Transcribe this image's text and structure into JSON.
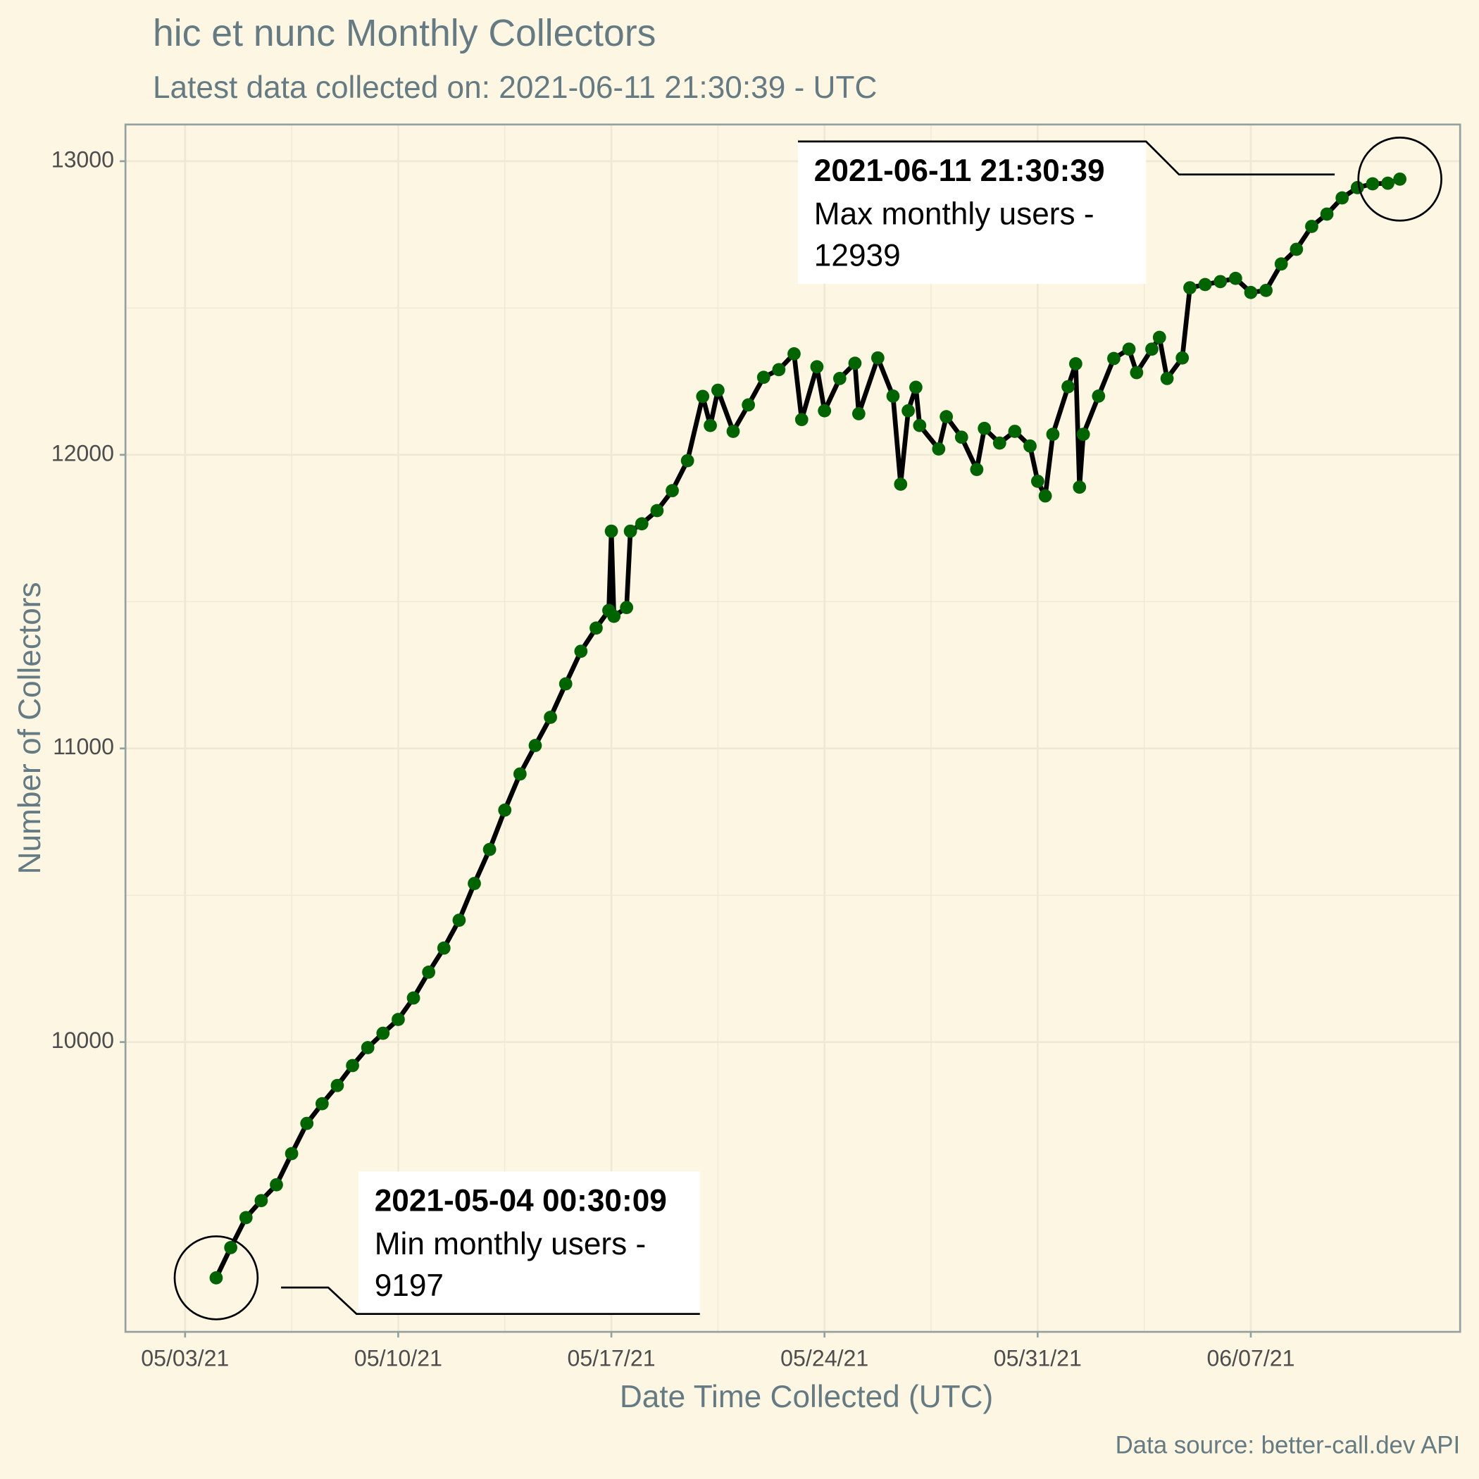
{
  "chart_data": {
    "type": "line",
    "title": "hic et nunc Monthly Collectors",
    "subtitle": "Latest data collected on: 2021-06-11 21:30:39  - UTC",
    "x_label": "Date Time Collected (UTC)",
    "y_label": "Number of Collectors",
    "caption": "Data source: better-call.dev API",
    "color": "#006400",
    "line_color": "#000000",
    "grid": true,
    "xlim": [
      "2021-05-01 01:00",
      "2021-06-13 21:00"
    ],
    "xticks": [
      {
        "value": "2021-05-03 00:00",
        "label": "05/03/21"
      },
      {
        "value": "2021-05-10 00:00",
        "label": "05/10/21"
      },
      {
        "value": "2021-05-17 00:00",
        "label": "05/17/21"
      },
      {
        "value": "2021-05-24 00:00",
        "label": "05/24/21"
      },
      {
        "value": "2021-05-31 00:00",
        "label": "05/31/21"
      },
      {
        "value": "2021-06-07 00:00",
        "label": "06/07/21"
      }
    ],
    "ylim": [
      9013,
      13125
    ],
    "yticks": [
      10000,
      11000,
      12000,
      13000
    ],
    "x": [
      "2021-05-04 00:30",
      "2021-05-04 12:00",
      "2021-05-05 00:00",
      "2021-05-05 12:00",
      "2021-05-06 00:00",
      "2021-05-06 12:00",
      "2021-05-07 00:00",
      "2021-05-07 12:00",
      "2021-05-08 00:00",
      "2021-05-08 12:00",
      "2021-05-09 00:00",
      "2021-05-09 12:00",
      "2021-05-10 00:00",
      "2021-05-10 12:00",
      "2021-05-11 00:00",
      "2021-05-11 12:00",
      "2021-05-12 00:00",
      "2021-05-12 12:00",
      "2021-05-13 00:00",
      "2021-05-13 12:00",
      "2021-05-14 00:00",
      "2021-05-14 12:00",
      "2021-05-15 00:00",
      "2021-05-15 12:00",
      "2021-05-16 00:00",
      "2021-05-16 12:00",
      "2021-05-16 22:00",
      "2021-05-17 00:00",
      "2021-05-17 02:00",
      "2021-05-17 12:00",
      "2021-05-17 15:00",
      "2021-05-18 00:00",
      "2021-05-18 12:00",
      "2021-05-19 00:00",
      "2021-05-19 12:00",
      "2021-05-20 00:00",
      "2021-05-20 06:00",
      "2021-05-20 12:00",
      "2021-05-21 00:00",
      "2021-05-21 12:00",
      "2021-05-22 00:00",
      "2021-05-22 12:00",
      "2021-05-23 00:00",
      "2021-05-23 06:00",
      "2021-05-23 18:00",
      "2021-05-24 00:00",
      "2021-05-24 12:00",
      "2021-05-25 00:00",
      "2021-05-25 03:00",
      "2021-05-25 18:00",
      "2021-05-26 06:00",
      "2021-05-26 12:00",
      "2021-05-26 18:00",
      "2021-05-27 00:00",
      "2021-05-27 03:00",
      "2021-05-27 18:00",
      "2021-05-28 00:00",
      "2021-05-28 12:00",
      "2021-05-29 00:00",
      "2021-05-29 06:00",
      "2021-05-29 18:00",
      "2021-05-30 06:00",
      "2021-05-30 18:00",
      "2021-05-31 00:00",
      "2021-05-31 06:00",
      "2021-05-31 12:00",
      "2021-06-01 00:00",
      "2021-06-01 06:00",
      "2021-06-01 09:00",
      "2021-06-01 12:00",
      "2021-06-02 00:00",
      "2021-06-02 12:00",
      "2021-06-03 00:00",
      "2021-06-03 06:00",
      "2021-06-03 18:00",
      "2021-06-04 00:00",
      "2021-06-04 06:00",
      "2021-06-04 18:00",
      "2021-06-05 00:00",
      "2021-06-05 12:00",
      "2021-06-06 00:00",
      "2021-06-06 12:00",
      "2021-06-07 00:00",
      "2021-06-07 12:00",
      "2021-06-08 00:00",
      "2021-06-08 12:00",
      "2021-06-09 00:00",
      "2021-06-09 12:00",
      "2021-06-10 00:00",
      "2021-06-10 12:00",
      "2021-06-11 00:00",
      "2021-06-11 12:00",
      "2021-06-11 21:30"
    ],
    "values": [
      9197,
      9300,
      9402,
      9460,
      9514,
      9620,
      9723,
      9790,
      9852,
      9920,
      9981,
      10030,
      10077,
      10150,
      10238,
      10320,
      10415,
      10540,
      10656,
      10790,
      10913,
      11010,
      11106,
      11220,
      11331,
      11410,
      11470,
      11740,
      11450,
      11480,
      11740,
      11765,
      11810,
      11878,
      11980,
      12199,
      12100,
      12220,
      12080,
      12170,
      12264,
      12290,
      12344,
      12120,
      12300,
      12150,
      12260,
      12312,
      12140,
      12330,
      12200,
      11900,
      12150,
      12230,
      12100,
      12020,
      12130,
      12060,
      11950,
      12090,
      12040,
      12080,
      12030,
      11910,
      11860,
      12070,
      12232,
      12310,
      11890,
      12070,
      12200,
      12328,
      12360,
      12280,
      12360,
      12400,
      12260,
      12330,
      12569,
      12580,
      12590,
      12601,
      12553,
      12560,
      12650,
      12700,
      12778,
      12820,
      12875,
      12910,
      12923,
      12925,
      12939
    ],
    "annotations": [
      {
        "title": "2021-05-04 00:30:09",
        "text": "Min monthly users -",
        "value": 9197
      },
      {
        "title": "2021-06-11 21:30:39",
        "text": "Max monthly users -",
        "value": 12939
      }
    ]
  }
}
